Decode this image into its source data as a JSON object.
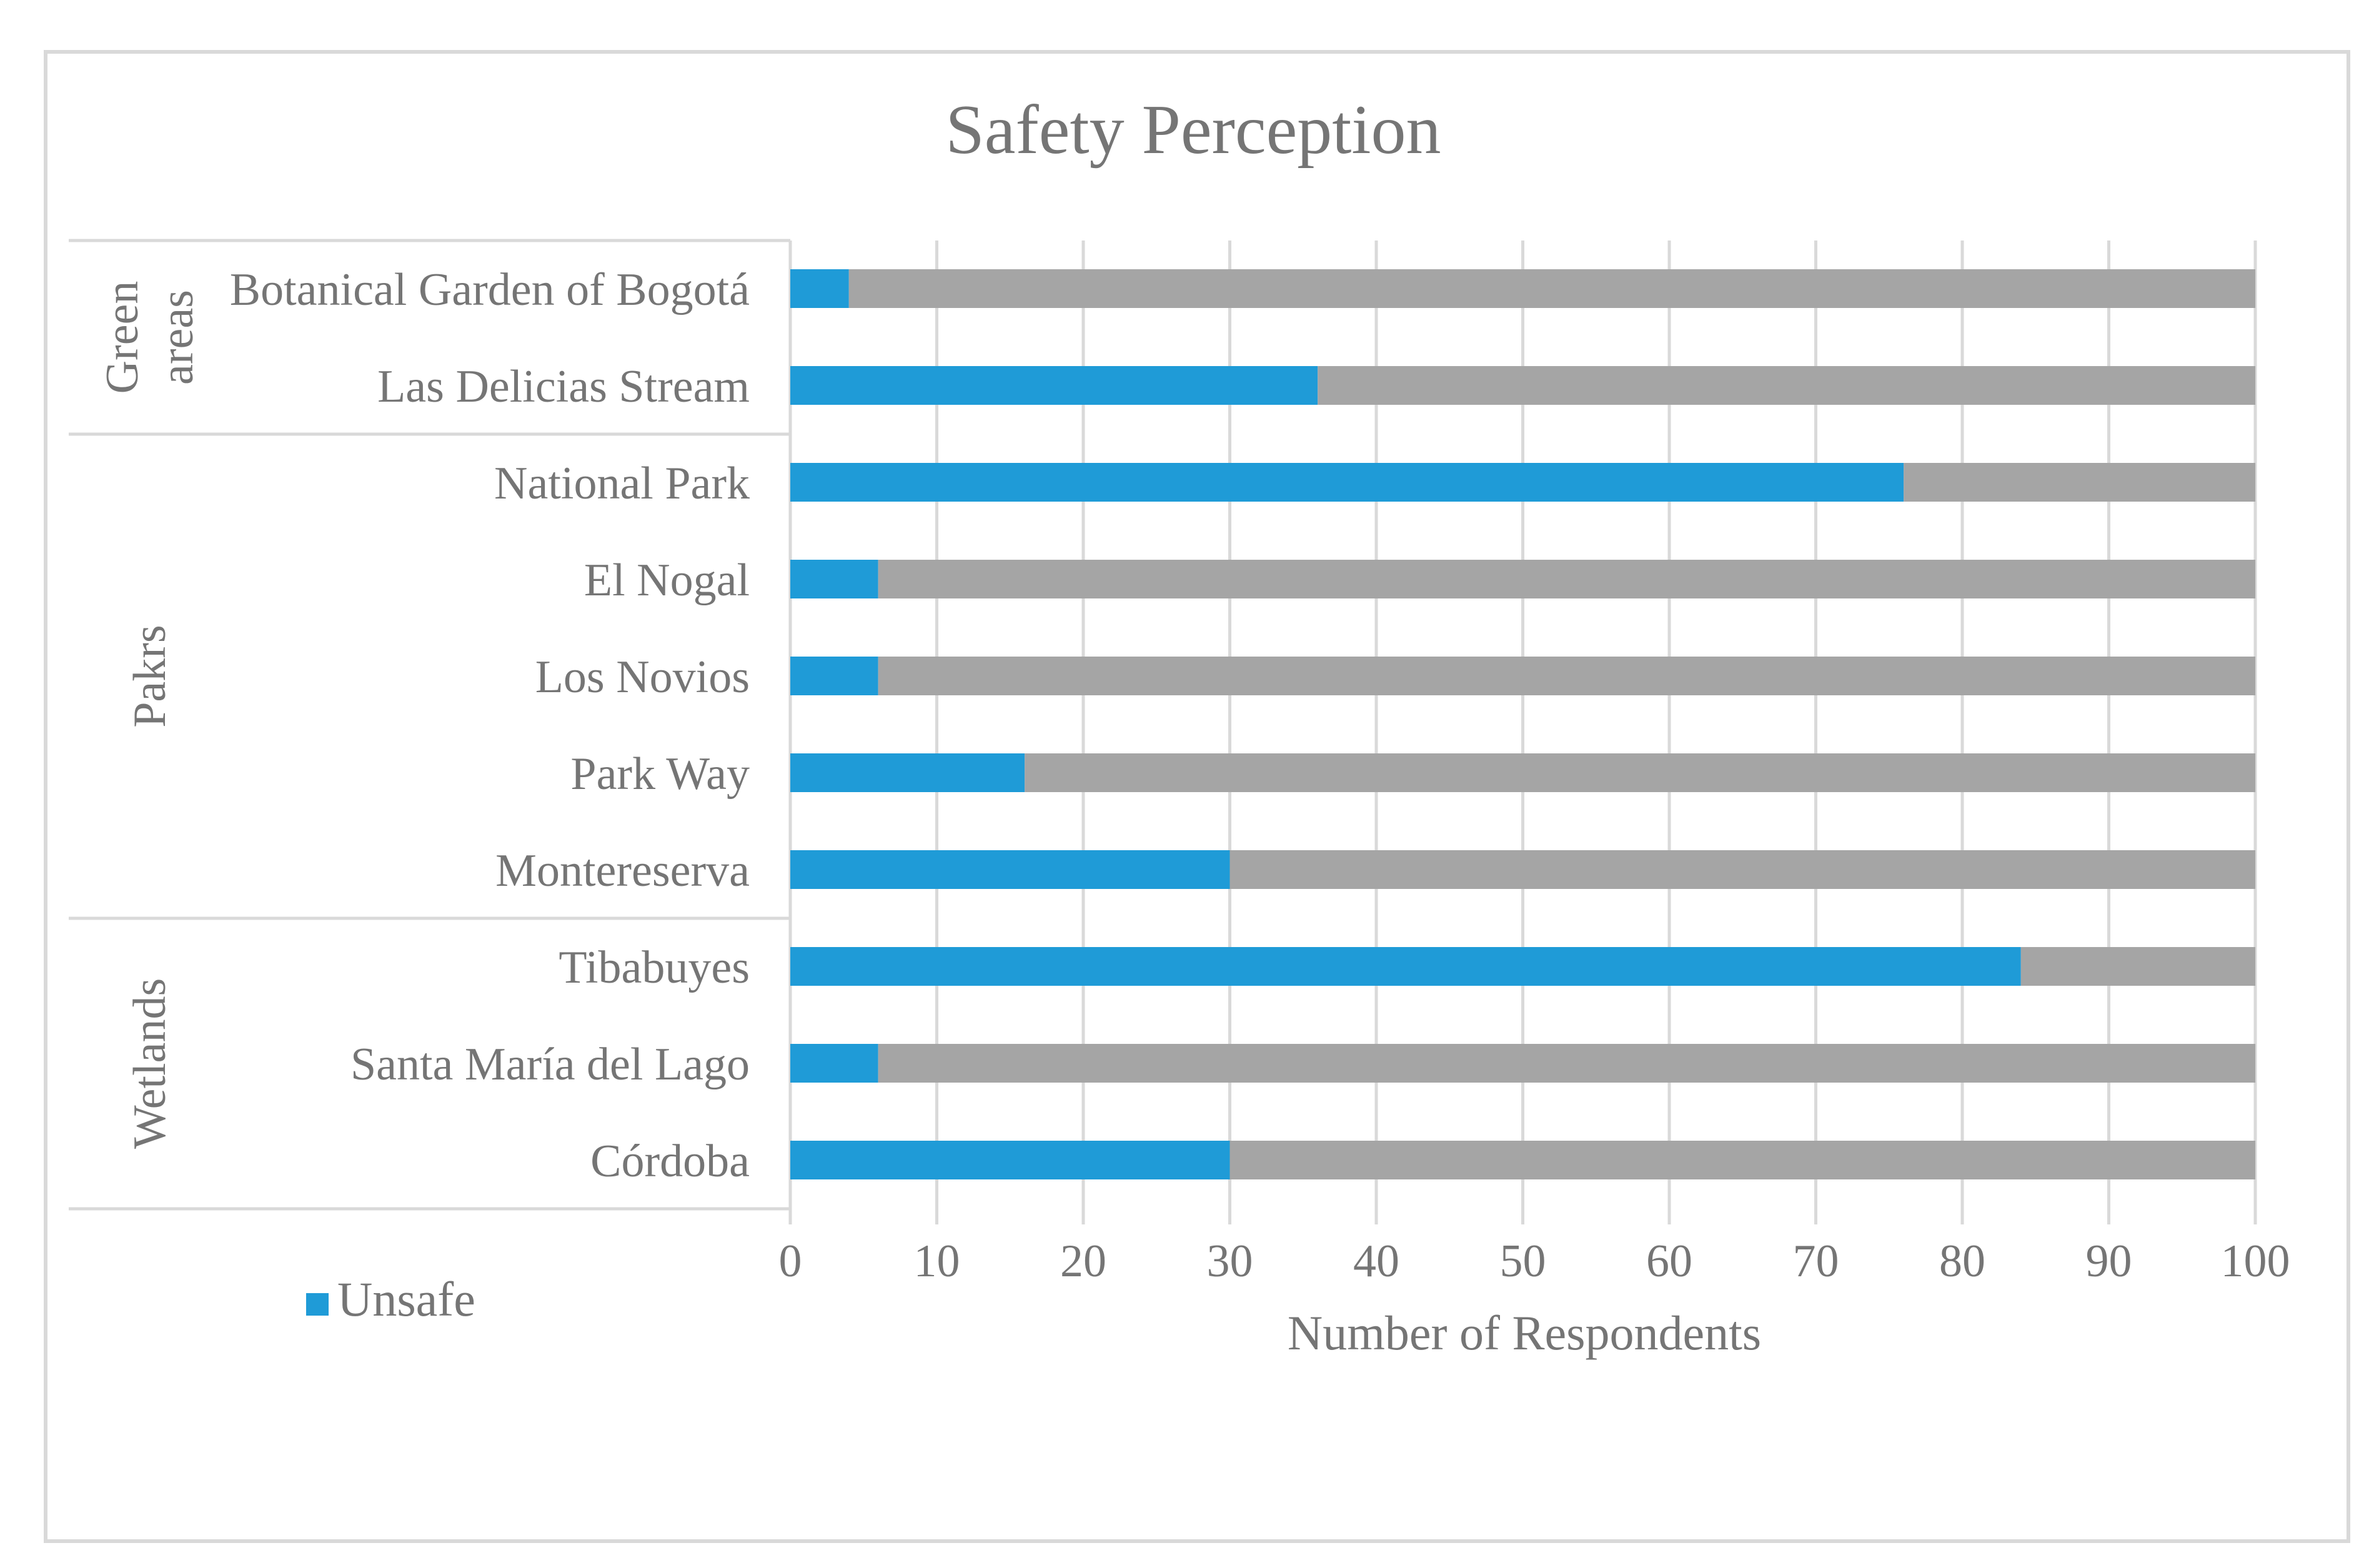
{
  "chart_data": {
    "type": "bar",
    "orientation": "horizontal",
    "stacked": true,
    "title": "Safety Perception",
    "xlabel": "Number of Respondents",
    "ylabel": "",
    "xlim": [
      0,
      100
    ],
    "xticks": [
      0,
      10,
      20,
      30,
      40,
      50,
      60,
      70,
      80,
      90,
      100
    ],
    "grid": true,
    "groups": [
      {
        "label": "Green areas",
        "label_lines": [
          "Green",
          "areas"
        ],
        "categories": [
          "Botanical Garden of Bogotá",
          "Las Delicias Stream"
        ]
      },
      {
        "label": "Pakrs",
        "label_lines": [
          "Pakrs"
        ],
        "categories": [
          "National Park",
          "El Nogal",
          "Los Novios",
          "Park Way",
          "Montereserva"
        ]
      },
      {
        "label": "Wetlands",
        "label_lines": [
          "Wetlands"
        ],
        "categories": [
          "Tibabuyes",
          "Santa María del Lago ",
          "Córdoba "
        ]
      }
    ],
    "categories": [
      "Botanical Garden of Bogotá",
      "Las Delicias Stream",
      "National Park",
      "El Nogal",
      "Los Novios",
      "Park Way",
      "Montereserva",
      "Tibabuyes",
      "Santa María del Lago ",
      "Córdoba "
    ],
    "series": [
      {
        "name": "Unsafe",
        "color": "#1f9bd7",
        "values": [
          4,
          36,
          76,
          6,
          6,
          16,
          30,
          84,
          6,
          30
        ]
      },
      {
        "name": "",
        "color": "#a5a5a5",
        "values": [
          96,
          64,
          24,
          94,
          94,
          84,
          70,
          16,
          94,
          70
        ]
      }
    ],
    "legend": {
      "position": "bottom-left",
      "entries": [
        "Unsafe"
      ]
    },
    "colors": {
      "grid": "#d9d9d9",
      "text": "#757575",
      "frame": "#d9d9d9"
    }
  }
}
